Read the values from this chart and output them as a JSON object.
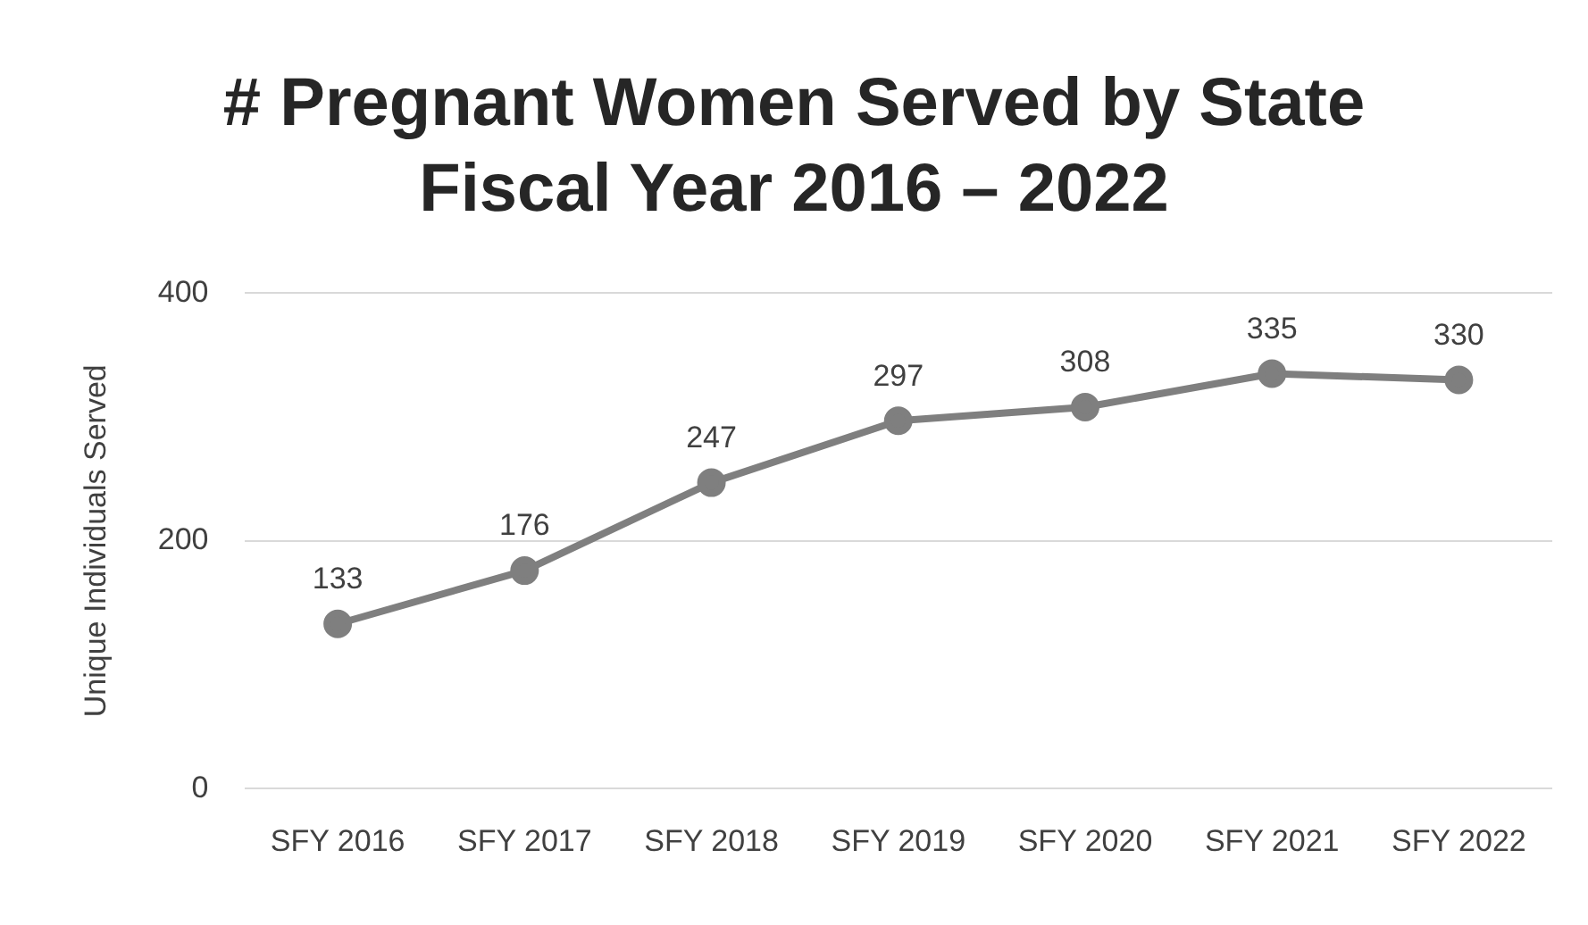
{
  "chart_data": {
    "type": "line",
    "title": "# Pregnant Women Served by State Fiscal Year 2016 – 2022",
    "ylabel": "Unique Individuals Served",
    "categories": [
      "SFY 2016",
      "SFY 2017",
      "SFY 2018",
      "SFY 2019",
      "SFY 2020",
      "SFY 2021",
      "SFY 2022"
    ],
    "series": [
      {
        "color": "#7f7f7f",
        "values": [
          133,
          176,
          247,
          297,
          308,
          335,
          330
        ]
      }
    ],
    "ylim": [
      0,
      400
    ],
    "yticks": [
      0,
      200,
      400
    ],
    "grid": "y",
    "legend": false,
    "marker": "circle",
    "line_style": "solid",
    "data_labels": true
  }
}
